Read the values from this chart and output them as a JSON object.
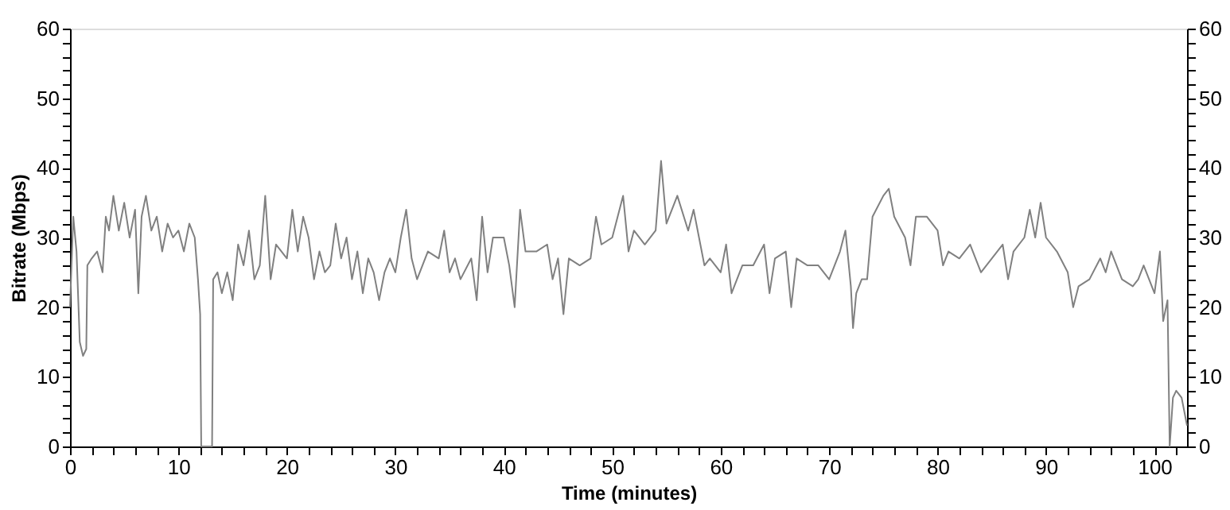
{
  "chart_data": {
    "type": "line",
    "xlabel": "Time (minutes)",
    "ylabel": "Bitrate (Mbps)",
    "xlim": [
      0,
      103
    ],
    "ylim": [
      0,
      60
    ],
    "y2lim": [
      0,
      60
    ],
    "xticks": [
      0,
      {
        "value": 2,
        "label": null
      },
      {
        "value": 4,
        "label": null
      },
      {
        "value": 6,
        "label": null
      },
      {
        "value": 8,
        "label": null
      },
      10,
      {
        "value": 12,
        "label": null
      },
      {
        "value": 14,
        "label": null
      },
      {
        "value": 16,
        "label": null
      },
      {
        "value": 18,
        "label": null
      },
      20,
      {
        "value": 22,
        "label": null
      },
      {
        "value": 24,
        "label": null
      },
      {
        "value": 26,
        "label": null
      },
      {
        "value": 28,
        "label": null
      },
      30,
      {
        "value": 32,
        "label": null
      },
      {
        "value": 34,
        "label": null
      },
      {
        "value": 36,
        "label": null
      },
      {
        "value": 38,
        "label": null
      },
      40,
      {
        "value": 42,
        "label": null
      },
      {
        "value": 44,
        "label": null
      },
      {
        "value": 46,
        "label": null
      },
      {
        "value": 48,
        "label": null
      },
      50,
      {
        "value": 52,
        "label": null
      },
      {
        "value": 54,
        "label": null
      },
      {
        "value": 56,
        "label": null
      },
      {
        "value": 58,
        "label": null
      },
      60,
      {
        "value": 62,
        "label": null
      },
      {
        "value": 64,
        "label": null
      },
      {
        "value": 66,
        "label": null
      },
      {
        "value": 68,
        "label": null
      },
      70,
      {
        "value": 72,
        "label": null
      },
      {
        "value": 74,
        "label": null
      },
      {
        "value": 76,
        "label": null
      },
      {
        "value": 78,
        "label": null
      },
      80,
      {
        "value": 82,
        "label": null
      },
      {
        "value": 84,
        "label": null
      },
      {
        "value": 86,
        "label": null
      },
      {
        "value": 88,
        "label": null
      },
      90,
      {
        "value": 92,
        "label": null
      },
      {
        "value": 94,
        "label": null
      },
      {
        "value": 96,
        "label": null
      },
      {
        "value": 98,
        "label": null
      },
      100,
      {
        "value": 102,
        "label": null
      }
    ],
    "yticks": [
      0,
      {
        "value": 2,
        "label": null
      },
      {
        "value": 4,
        "label": null
      },
      {
        "value": 6,
        "label": null
      },
      {
        "value": 8,
        "label": null
      },
      10,
      {
        "value": 12,
        "label": null
      },
      {
        "value": 14,
        "label": null
      },
      {
        "value": 16,
        "label": null
      },
      {
        "value": 18,
        "label": null
      },
      20,
      {
        "value": 22,
        "label": null
      },
      {
        "value": 24,
        "label": null
      },
      {
        "value": 26,
        "label": null
      },
      {
        "value": 28,
        "label": null
      },
      30,
      {
        "value": 32,
        "label": null
      },
      {
        "value": 34,
        "label": null
      },
      {
        "value": 36,
        "label": null
      },
      {
        "value": 38,
        "label": null
      },
      40,
      {
        "value": 42,
        "label": null
      },
      {
        "value": 44,
        "label": null
      },
      {
        "value": 46,
        "label": null
      },
      {
        "value": 48,
        "label": null
      },
      50,
      {
        "value": 52,
        "label": null
      },
      {
        "value": 54,
        "label": null
      },
      {
        "value": 56,
        "label": null
      },
      {
        "value": 58,
        "label": null
      },
      60
    ],
    "y2ticks": [
      0,
      {
        "value": 2,
        "label": null
      },
      {
        "value": 4,
        "label": null
      },
      {
        "value": 6,
        "label": null
      },
      {
        "value": 8,
        "label": null
      },
      10,
      {
        "value": 12,
        "label": null
      },
      {
        "value": 14,
        "label": null
      },
      {
        "value": 16,
        "label": null
      },
      {
        "value": 18,
        "label": null
      },
      20,
      {
        "value": 22,
        "label": null
      },
      {
        "value": 24,
        "label": null
      },
      {
        "value": 26,
        "label": null
      },
      {
        "value": 28,
        "label": null
      },
      30,
      {
        "value": 32,
        "label": null
      },
      {
        "value": 34,
        "label": null
      },
      {
        "value": 36,
        "label": null
      },
      {
        "value": 38,
        "label": null
      },
      40,
      {
        "value": 42,
        "label": null
      },
      {
        "value": 44,
        "label": null
      },
      {
        "value": 46,
        "label": null
      },
      {
        "value": 48,
        "label": null
      },
      50,
      {
        "value": 52,
        "label": null
      },
      {
        "value": 54,
        "label": null
      },
      {
        "value": 56,
        "label": null
      },
      {
        "value": 58,
        "label": null
      },
      60
    ],
    "grid": false,
    "legend": false,
    "marker": "none",
    "line_style": "solid",
    "series": [
      {
        "color": "#808080",
        "x": [
          0,
          0.3,
          0.6,
          0.9,
          1.2,
          1.5,
          1.6,
          2,
          2.5,
          3,
          3.3,
          3.6,
          4,
          4.5,
          5,
          5.5,
          6,
          6.3,
          6.6,
          7,
          7.5,
          8,
          8.5,
          9,
          9.5,
          10,
          10.5,
          11,
          11.5,
          11.8,
          12,
          12.1,
          13.1,
          13.2,
          13.6,
          14,
          14.5,
          15,
          15.5,
          16,
          16.5,
          17,
          17.5,
          18,
          18.5,
          19,
          20,
          20.5,
          21,
          21.5,
          22,
          22.5,
          23,
          23.5,
          24,
          24.5,
          25,
          25.5,
          26,
          26.5,
          27,
          27.5,
          28,
          28.5,
          29,
          29.5,
          30,
          30.5,
          31,
          31.5,
          32,
          32.5,
          33,
          34,
          34.5,
          35,
          35.5,
          36,
          37,
          37.5,
          38,
          38.5,
          39,
          40,
          40.5,
          41,
          41.5,
          42,
          43,
          44,
          44.5,
          45,
          45.5,
          46,
          47,
          48,
          48.5,
          49,
          50,
          51,
          51.5,
          52,
          53,
          54,
          54.5,
          55,
          56,
          57,
          57.5,
          58,
          58.5,
          59,
          60,
          60.5,
          61,
          62,
          63,
          64,
          64.5,
          65,
          66,
          66.5,
          67,
          68,
          69,
          70,
          70.5,
          71,
          71.5,
          72,
          72.2,
          72.5,
          73,
          73.5,
          74,
          75,
          75.5,
          76,
          77,
          77.5,
          78,
          79,
          80,
          80.5,
          81,
          82,
          83,
          83.5,
          84,
          85,
          86,
          86.5,
          87,
          88,
          88.5,
          89,
          89.5,
          90,
          91,
          92,
          92.5,
          93,
          94,
          95,
          95.5,
          96,
          97,
          98,
          98.5,
          99,
          99.5,
          100,
          100.5,
          100.8,
          101.2,
          101.4,
          101.7,
          102,
          102.5,
          103
        ],
        "values": [
          20,
          33,
          28,
          15,
          13,
          14,
          26,
          27,
          28,
          25,
          33,
          31,
          36,
          31,
          35,
          30,
          34,
          22,
          33,
          36,
          31,
          33,
          28,
          32,
          30,
          31,
          28,
          32,
          30,
          24,
          19,
          0,
          0,
          24,
          25,
          22,
          25,
          21,
          29,
          26,
          31,
          24,
          26,
          36,
          24,
          29,
          27,
          34,
          28,
          33,
          30,
          24,
          28,
          25,
          26,
          32,
          27,
          30,
          24,
          28,
          22,
          27,
          25,
          21,
          25,
          27,
          25,
          30,
          34,
          27,
          24,
          26,
          28,
          27,
          31,
          25,
          27,
          24,
          27,
          21,
          33,
          25,
          30,
          30,
          26,
          20,
          34,
          28,
          28,
          29,
          24,
          27,
          19,
          27,
          26,
          27,
          33,
          29,
          30,
          36,
          28,
          31,
          29,
          31,
          41,
          32,
          36,
          31,
          34,
          30,
          26,
          27,
          25,
          29,
          22,
          26,
          26,
          29,
          22,
          27,
          28,
          20,
          27,
          26,
          26,
          24,
          26,
          28,
          31,
          23,
          17,
          22,
          24,
          24,
          33,
          36,
          37,
          33,
          30,
          26,
          33,
          33,
          31,
          26,
          28,
          27,
          29,
          27,
          25,
          27,
          29,
          24,
          28,
          30,
          34,
          30,
          35,
          30,
          28,
          25,
          20,
          23,
          24,
          27,
          25,
          28,
          24,
          23,
          24,
          26,
          24,
          22,
          28,
          18,
          21,
          0,
          7,
          8,
          7,
          3
        ]
      }
    ]
  }
}
